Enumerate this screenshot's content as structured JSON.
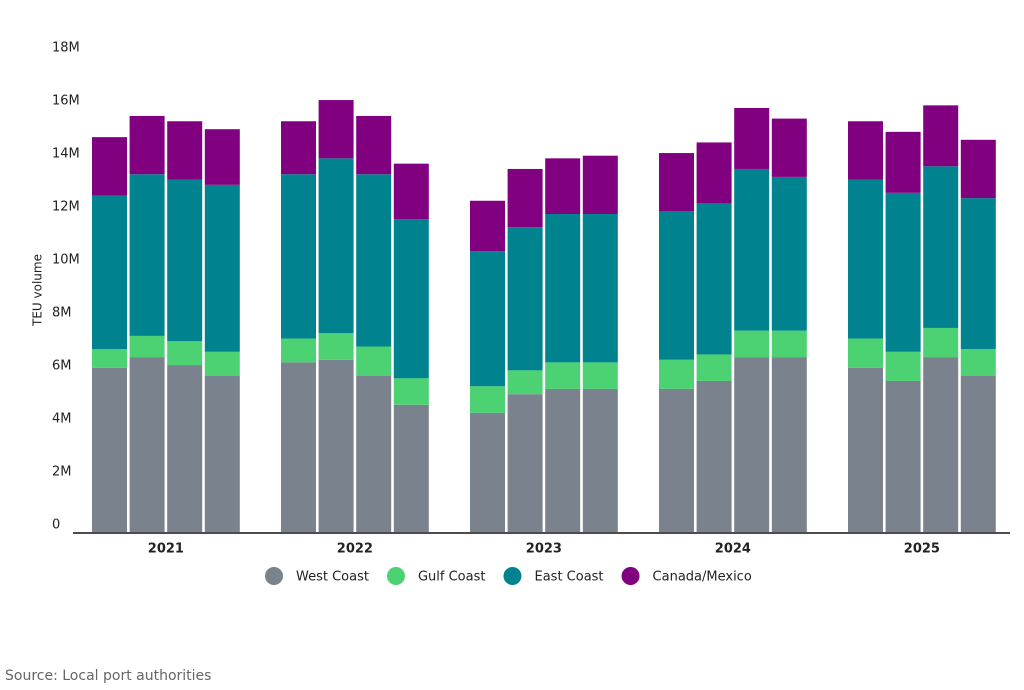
{
  "chart_data": {
    "type": "stacked_bar",
    "y_label": "TEU volume",
    "source": "Source: Local port authorities",
    "groups": [
      "2021",
      "2022",
      "2023",
      "2024",
      "2025"
    ],
    "categories": [
      null,
      null,
      null,
      null,
      null,
      null,
      null,
      null,
      null,
      null,
      null,
      null,
      null,
      null,
      null,
      null,
      null,
      null,
      null,
      null
    ],
    "ylim": [
      0,
      18000000
    ],
    "yticks": [
      0,
      {
        "value": 2000000,
        "label": "2M"
      },
      {
        "value": 4000000,
        "label": "4M"
      },
      {
        "value": 6000000,
        "label": "6M"
      },
      {
        "value": 8000000,
        "label": "8M"
      },
      {
        "value": 10000000,
        "label": "10M"
      },
      {
        "value": 12000000,
        "label": "12M"
      },
      {
        "value": 14000000,
        "label": "14M"
      },
      {
        "value": 16000000,
        "label": "16M"
      },
      {
        "value": 18000000,
        "label": "18M"
      }
    ],
    "grid": false,
    "series": [
      {
        "name": "West Coast",
        "color": "#7a828d",
        "values": [
          6200000,
          6600000,
          6300000,
          5900000,
          6400000,
          6500000,
          5900000,
          4800000,
          4500000,
          5200000,
          5400000,
          5400000,
          5400000,
          5700000,
          6600000,
          6600000,
          6200000,
          5700000,
          6600000,
          5900000
        ]
      },
      {
        "name": "Gulf Coast",
        "color": "#4cd173",
        "values": [
          700000,
          800000,
          900000,
          900000,
          900000,
          1000000,
          1100000,
          1000000,
          1000000,
          900000,
          1000000,
          1000000,
          1100000,
          1000000,
          1000000,
          1000000,
          1100000,
          1100000,
          1100000,
          1000000
        ]
      },
      {
        "name": "East Coast",
        "color": "#00838f",
        "values": [
          5800000,
          6100000,
          6100000,
          6300000,
          6200000,
          6600000,
          6500000,
          6000000,
          5100000,
          5400000,
          5600000,
          5600000,
          5600000,
          5700000,
          6100000,
          5800000,
          6000000,
          6000000,
          6100000,
          5700000
        ]
      },
      {
        "name": "Canada/Mexico",
        "color": "#800080",
        "values": [
          2200000,
          2200000,
          2200000,
          2100000,
          2000000,
          2200000,
          2200000,
          2100000,
          1900000,
          2200000,
          2100000,
          2200000,
          2200000,
          2300000,
          2300000,
          2200000,
          2200000,
          2300000,
          2300000,
          2200000
        ]
      }
    ]
  }
}
